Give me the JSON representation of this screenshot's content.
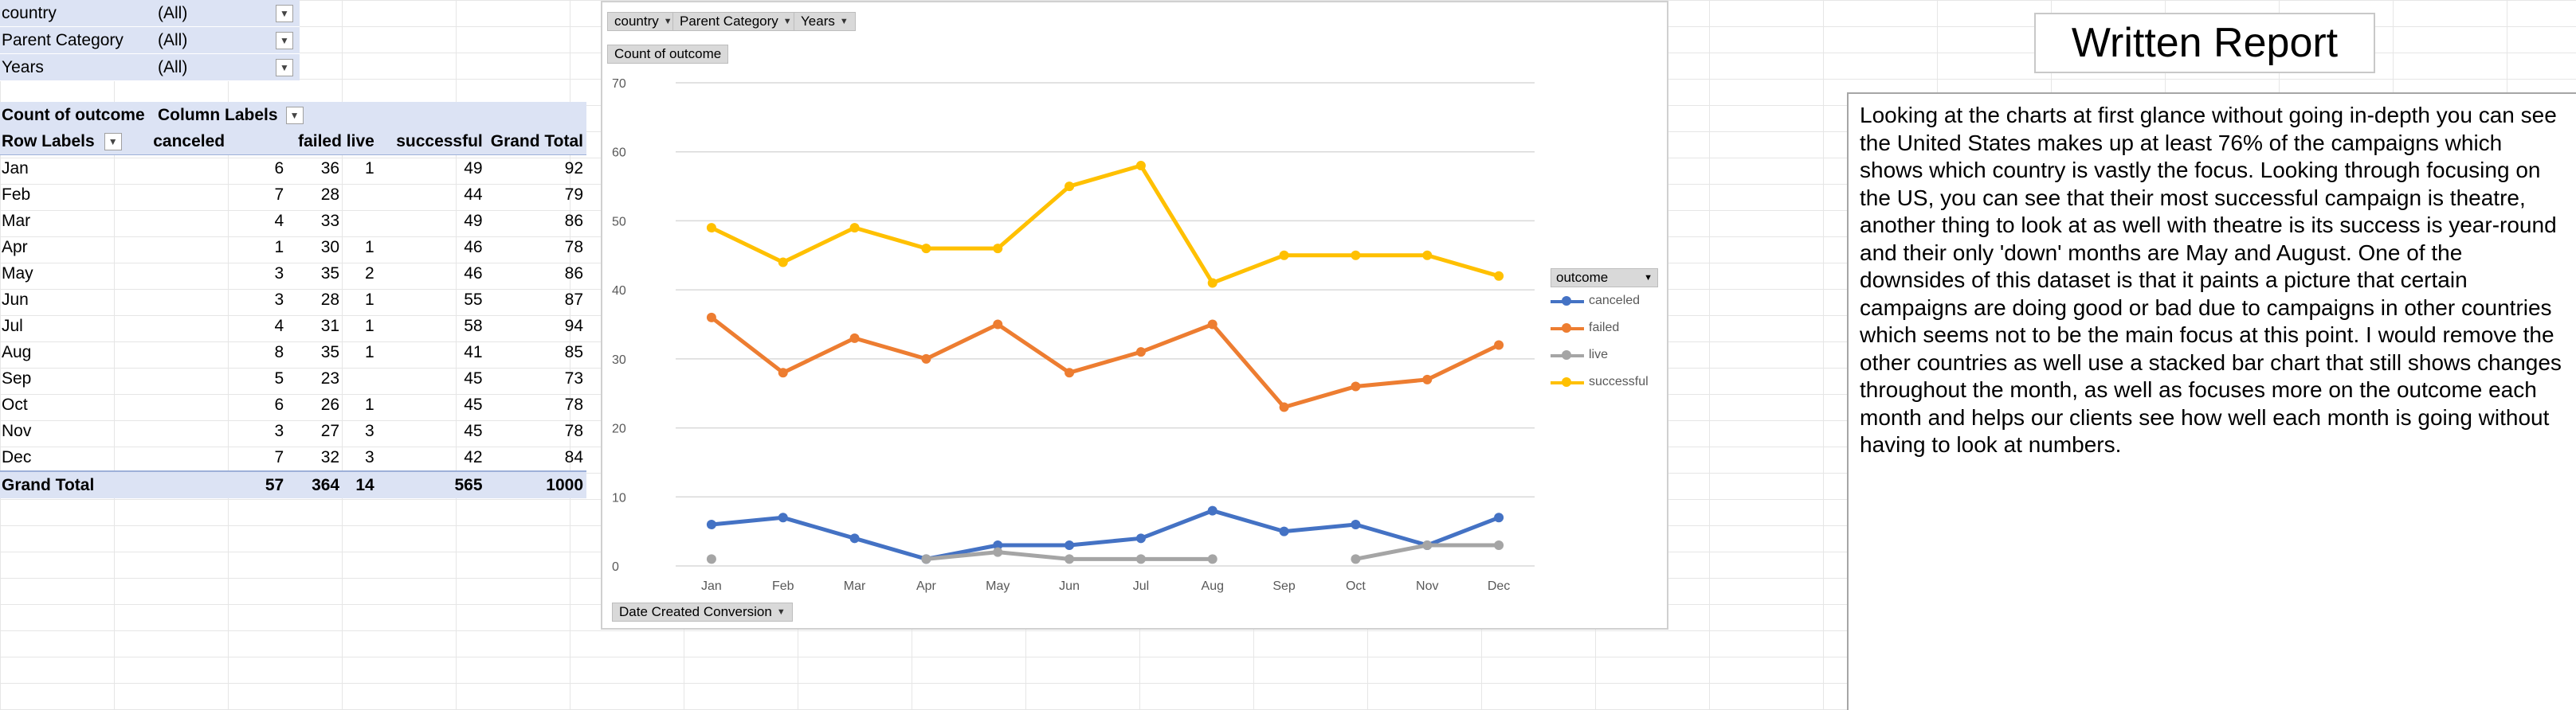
{
  "filters": [
    {
      "label": "country",
      "value": "(All)"
    },
    {
      "label": "Parent Category",
      "value": "(All)"
    },
    {
      "label": "Years",
      "value": "(All)"
    }
  ],
  "pivot": {
    "corner": "Count of outcome",
    "column_labels": "Column Labels",
    "row_labels": "Row Labels",
    "headers": [
      "canceled",
      "failed",
      "live",
      "successful",
      "Grand Total"
    ],
    "rows": [
      {
        "month": "Jan",
        "canceled": "6",
        "failed": "36",
        "live": "1",
        "successful": "49",
        "total": "92"
      },
      {
        "month": "Feb",
        "canceled": "7",
        "failed": "28",
        "live": "",
        "successful": "44",
        "total": "79"
      },
      {
        "month": "Mar",
        "canceled": "4",
        "failed": "33",
        "live": "",
        "successful": "49",
        "total": "86"
      },
      {
        "month": "Apr",
        "canceled": "1",
        "failed": "30",
        "live": "1",
        "successful": "46",
        "total": "78"
      },
      {
        "month": "May",
        "canceled": "3",
        "failed": "35",
        "live": "2",
        "successful": "46",
        "total": "86"
      },
      {
        "month": "Jun",
        "canceled": "3",
        "failed": "28",
        "live": "1",
        "successful": "55",
        "total": "87"
      },
      {
        "month": "Jul",
        "canceled": "4",
        "failed": "31",
        "live": "1",
        "successful": "58",
        "total": "94"
      },
      {
        "month": "Aug",
        "canceled": "8",
        "failed": "35",
        "live": "1",
        "successful": "41",
        "total": "85"
      },
      {
        "month": "Sep",
        "canceled": "5",
        "failed": "23",
        "live": "",
        "successful": "45",
        "total": "73"
      },
      {
        "month": "Oct",
        "canceled": "6",
        "failed": "26",
        "live": "1",
        "successful": "45",
        "total": "78"
      },
      {
        "month": "Nov",
        "canceled": "3",
        "failed": "27",
        "live": "3",
        "successful": "45",
        "total": "78"
      },
      {
        "month": "Dec",
        "canceled": "7",
        "failed": "32",
        "live": "3",
        "successful": "42",
        "total": "84"
      }
    ],
    "grand_total": {
      "label": "Grand Total",
      "canceled": "57",
      "failed": "364",
      "live": "14",
      "successful": "565",
      "total": "1000"
    }
  },
  "chart": {
    "filter_buttons": [
      "country",
      "Parent Category",
      "Years"
    ],
    "value_button": "Count of outcome",
    "axis_button": "Date Created Conversion",
    "legend_title": "outcome"
  },
  "chart_data": {
    "type": "line",
    "x": [
      "Jan",
      "Feb",
      "Mar",
      "Apr",
      "May",
      "Jun",
      "Jul",
      "Aug",
      "Sep",
      "Oct",
      "Nov",
      "Dec"
    ],
    "ylim": [
      0,
      70
    ],
    "yticks": [
      0,
      10,
      20,
      30,
      40,
      50,
      60,
      70
    ],
    "grid": true,
    "legend_position": "right",
    "series": [
      {
        "name": "canceled",
        "color": "#4472c4",
        "values": [
          6,
          7,
          4,
          1,
          3,
          3,
          4,
          8,
          5,
          6,
          3,
          7
        ]
      },
      {
        "name": "failed",
        "color": "#ed7d31",
        "values": [
          36,
          28,
          33,
          30,
          35,
          28,
          31,
          35,
          23,
          26,
          27,
          32
        ]
      },
      {
        "name": "live",
        "color": "#a5a5a5",
        "values": [
          1,
          null,
          null,
          1,
          2,
          1,
          1,
          1,
          null,
          1,
          3,
          3
        ]
      },
      {
        "name": "successful",
        "color": "#ffc000",
        "values": [
          49,
          44,
          49,
          46,
          46,
          55,
          58,
          41,
          45,
          45,
          45,
          42
        ]
      }
    ]
  },
  "report": {
    "title": "Written Report",
    "body": "Looking at the charts at first glance without going in-depth you can see the United States makes up at least 76% of the campaigns which shows which country is vastly the focus. Looking through focusing on the US, you can see that their most successful campaign is theatre, another thing to look at as well with theatre is its success is year-round and their only 'down' months are May and August.  One of the downsides of this dataset is that it paints a picture that certain campaigns are doing good or bad due to campaigns in other countries which seems not to be the main focus at this point. I would remove the other countries as well use a stacked bar chart that still shows changes throughout the month, as well as focuses more on the outcome each month and helps our clients see how well each month is going without having to look at numbers."
  }
}
